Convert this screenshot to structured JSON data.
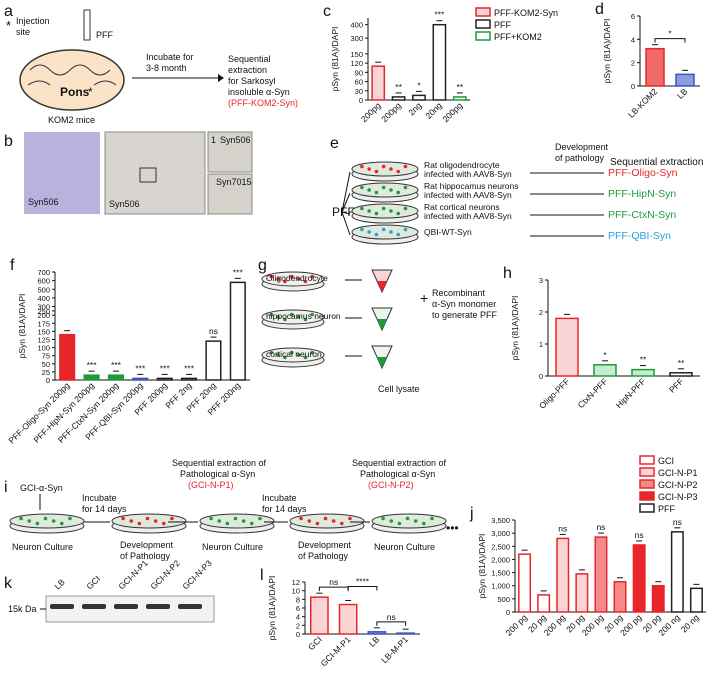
{
  "chart_data": [
    {
      "type": "bar",
      "panel": "c",
      "ylabel": "pSyn (81A)/DAPI",
      "categories": [
        "200pg",
        "200pg",
        "2ng",
        "20ng",
        "200pg"
      ],
      "series": [
        {
          "name": "PFF-KOM2-Syn",
          "color": "#e8262a",
          "fill": "#fbd5d5",
          "values": [
            110,
            null,
            null,
            null,
            null
          ]
        },
        {
          "name": "PFF",
          "color": "#222222",
          "fill": "#ffffff",
          "values": [
            null,
            10,
            15,
            400,
            null
          ]
        },
        {
          "name": "PFF+KOM2",
          "color": "#1f9a3a",
          "fill": "#ffffff",
          "values": [
            null,
            null,
            null,
            null,
            10
          ]
        }
      ],
      "annotations": [
        null,
        "**",
        "*",
        "***",
        "**"
      ],
      "ylim": [
        0,
        450
      ],
      "ybreak": [
        160,
        250
      ],
      "yticks": [
        0,
        30,
        60,
        90,
        120,
        150,
        300,
        400
      ]
    },
    {
      "type": "bar",
      "panel": "d",
      "ylabel": "pSyn (81A)/DAPI",
      "categories": [
        "LB-KOM2",
        "LB"
      ],
      "values": [
        3.2,
        1.0
      ],
      "colors": [
        "#e8262a",
        "#3b55c4"
      ],
      "fills": [
        "#f06a6a",
        "#8a9be0"
      ],
      "brackets": [
        {
          "from": 0,
          "to": 1,
          "text": "*"
        }
      ],
      "ylim": [
        0,
        6
      ],
      "yticks": [
        0,
        2,
        4,
        6
      ]
    },
    {
      "type": "bar",
      "panel": "f",
      "ylabel": "pSyn (81A)/DAPI",
      "categories": [
        "PFF-Oligo-Syn 200pg",
        "PFF-HipN-Syn 200pg",
        "PFF-CtxN-Syn 200pg",
        "PFF-QBI-Syn 200pg",
        "PFF 200pg",
        "PFF 2ng",
        "PFF 20ng",
        "PFF 200ng"
      ],
      "values": [
        140,
        15,
        15,
        5,
        5,
        5,
        120,
        580
      ],
      "colors": [
        "#e8262a",
        "#1f9a3a",
        "#1f9a3a",
        "#3b55c4",
        "#222222",
        "#222222",
        "#222222",
        "#222222"
      ],
      "fills": [
        "#e8262a",
        "#1f9a3a",
        "#1f9a3a",
        "#3b55c4",
        "#ffffff",
        "#ffffff",
        "#ffffff",
        "#ffffff"
      ],
      "annotations": [
        null,
        "***",
        "***",
        "***",
        "***",
        "***",
        "ns",
        "***"
      ],
      "ylim": [
        0,
        700
      ],
      "ybreak": [
        200,
        200
      ],
      "yticks": [
        0,
        25,
        50,
        75,
        100,
        125,
        150,
        175,
        200,
        250,
        300,
        400,
        500,
        600,
        700
      ]
    },
    {
      "type": "bar",
      "panel": "h",
      "ylabel": "pSyn (81A)/DAPI",
      "categories": [
        "Oligo-PFF",
        "CtxN-PFF",
        "HipN-PFF",
        "PFF"
      ],
      "values": [
        1.8,
        0.35,
        0.2,
        0.1
      ],
      "colors": [
        "#e8262a",
        "#1f9a3a",
        "#1f9a3a",
        "#222222"
      ],
      "fills": [
        "#fbd5d5",
        "#c9ecd1",
        "#c9ecd1",
        "#ffffff"
      ],
      "annotations": [
        null,
        "*",
        "**",
        "**"
      ],
      "ylim": [
        0,
        3
      ],
      "yticks": [
        0,
        1,
        2,
        3
      ]
    },
    {
      "type": "bar",
      "panel": "l",
      "ylabel": "pSyn (81A)/DAPI",
      "categories": [
        "GCI",
        "GCI-M-P1",
        "LB",
        "LB-M-P1"
      ],
      "values": [
        8.5,
        6.8,
        0.5,
        0.2
      ],
      "colors": [
        "#e8262a",
        "#e8262a",
        "#3b55c4",
        "#3b55c4"
      ],
      "fills": [
        "#fbd5d5",
        "#fbd5d5",
        "#8a9be0",
        "#8a9be0"
      ],
      "brackets": [
        {
          "from": 0,
          "to": 1,
          "text": "ns"
        },
        {
          "from": 1,
          "to": 2,
          "text": "****"
        },
        {
          "from": 2,
          "to": 3,
          "text": "ns"
        }
      ],
      "ylim": [
        0,
        12
      ],
      "yticks": [
        0,
        2,
        4,
        6,
        8,
        10,
        12
      ]
    },
    {
      "type": "bar",
      "panel": "j",
      "ylabel": "pSyn (81A)/DAPI",
      "categories": [
        "200 pg",
        "20 pg",
        "200 pg",
        "20 pg",
        "200 pg",
        "20 pg",
        "200 pg",
        "20 pg",
        "200 ng",
        "20 ng"
      ],
      "series": [
        {
          "name": "GCI",
          "color": "#e8262a",
          "fill": "#ffffff",
          "values": [
            2200,
            650,
            null,
            null,
            null,
            null,
            null,
            null,
            null,
            null
          ]
        },
        {
          "name": "GCI-N-P1",
          "color": "#e8262a",
          "fill": "#fbd5d5",
          "values": [
            null,
            null,
            2800,
            1450,
            null,
            null,
            null,
            null,
            null,
            null
          ]
        },
        {
          "name": "GCI-N-P2",
          "color": "#e8262a",
          "fill": "#f58a8a",
          "values": [
            null,
            null,
            null,
            null,
            2850,
            1150,
            null,
            null,
            null,
            null
          ]
        },
        {
          "name": "GCI-N-P3",
          "color": "#e8262a",
          "fill": "#e8262a",
          "values": [
            null,
            null,
            null,
            null,
            null,
            null,
            2550,
            1000,
            null,
            null
          ]
        },
        {
          "name": "PFF",
          "color": "#222222",
          "fill": "#ffffff",
          "values": [
            null,
            null,
            null,
            null,
            null,
            null,
            null,
            null,
            3050,
            900
          ]
        }
      ],
      "annotations": [
        null,
        null,
        "ns",
        null,
        "ns",
        null,
        "ns",
        null,
        "ns",
        null
      ],
      "ylim": [
        0,
        3500
      ],
      "yticks": [
        0,
        500,
        {
          "value": 1000,
          "label": "1,000"
        },
        {
          "value": 1500,
          "label": "1,500"
        },
        {
          "value": 2000,
          "label": "2,000"
        },
        {
          "value": 2500,
          "label": "2,500"
        },
        {
          "value": 3000,
          "label": "3,000"
        },
        {
          "value": 3500,
          "label": "3,500"
        }
      ]
    }
  ],
  "diagram": {
    "letters": [
      "a",
      "b",
      "e",
      "g",
      "i",
      "k"
    ],
    "a": {
      "asterisk": "*",
      "injection": [
        "Injection",
        "site"
      ],
      "pff": "PFF",
      "pons": "Pons",
      "mice": "KOM2 mice",
      "incubate": [
        "Incubate for",
        "3-8 month"
      ],
      "extraction": [
        "Sequential",
        "extraction",
        "for Sarkosyl",
        "insoluble α-Syn"
      ],
      "product": "(PFF-KOM2-Syn)"
    },
    "b": {
      "labels": [
        "Syn506",
        "Syn506",
        "1",
        "Syn506",
        "Syn7015"
      ]
    },
    "e": {
      "pff": "PFF",
      "development": [
        "Development",
        "of pathology"
      ],
      "extraction": "Sequential extraction",
      "rows": [
        {
          "source": [
            "Rat oligodendrocyte",
            "infected with AAV8-Syn"
          ],
          "product": "PFF-Oligo-Syn",
          "color": "#e8262a"
        },
        {
          "source": [
            "Rat hippocamus neurons",
            "infected with AAV8-Syn"
          ],
          "product": "PFF-HipN-Syn",
          "color": "#1f9a3a"
        },
        {
          "source": [
            "Rat cortical neurons",
            "infected with AAV8-Syn"
          ],
          "product": "PFF-CtxN-Syn",
          "color": "#1f9a3a"
        },
        {
          "source": [
            "QBI-WT-Syn"
          ],
          "product": "PFF-QBI-Syn",
          "color": "#2aa0d8"
        }
      ]
    },
    "g": {
      "cells": [
        "Oligodendrocyte",
        "hippocamus neuron",
        "cortical neuron"
      ],
      "plus": "+",
      "recombinant": [
        "Recombinant",
        "α-Syn monomer",
        "to generate PFF"
      ],
      "lysate": "Cell lysate"
    },
    "i": {
      "gci": "GCI-α-Syn",
      "incubate": [
        "Incubate",
        "for 14 days"
      ],
      "extraction": [
        "Sequential extraction of",
        "Pathological α-Syn"
      ],
      "p1": "(GCI-N-P1)",
      "p2": "(GCI-N-P2)",
      "neuron": "Neuron Culture",
      "development": [
        "Development",
        "of Pathology"
      ],
      "ellipsis": "•••"
    },
    "k": {
      "lanes": [
        "LB",
        "GCI",
        "GCI-N-P1",
        "GCI-N-P2",
        "GCI-N-P3"
      ],
      "marker": "15k Da"
    }
  }
}
